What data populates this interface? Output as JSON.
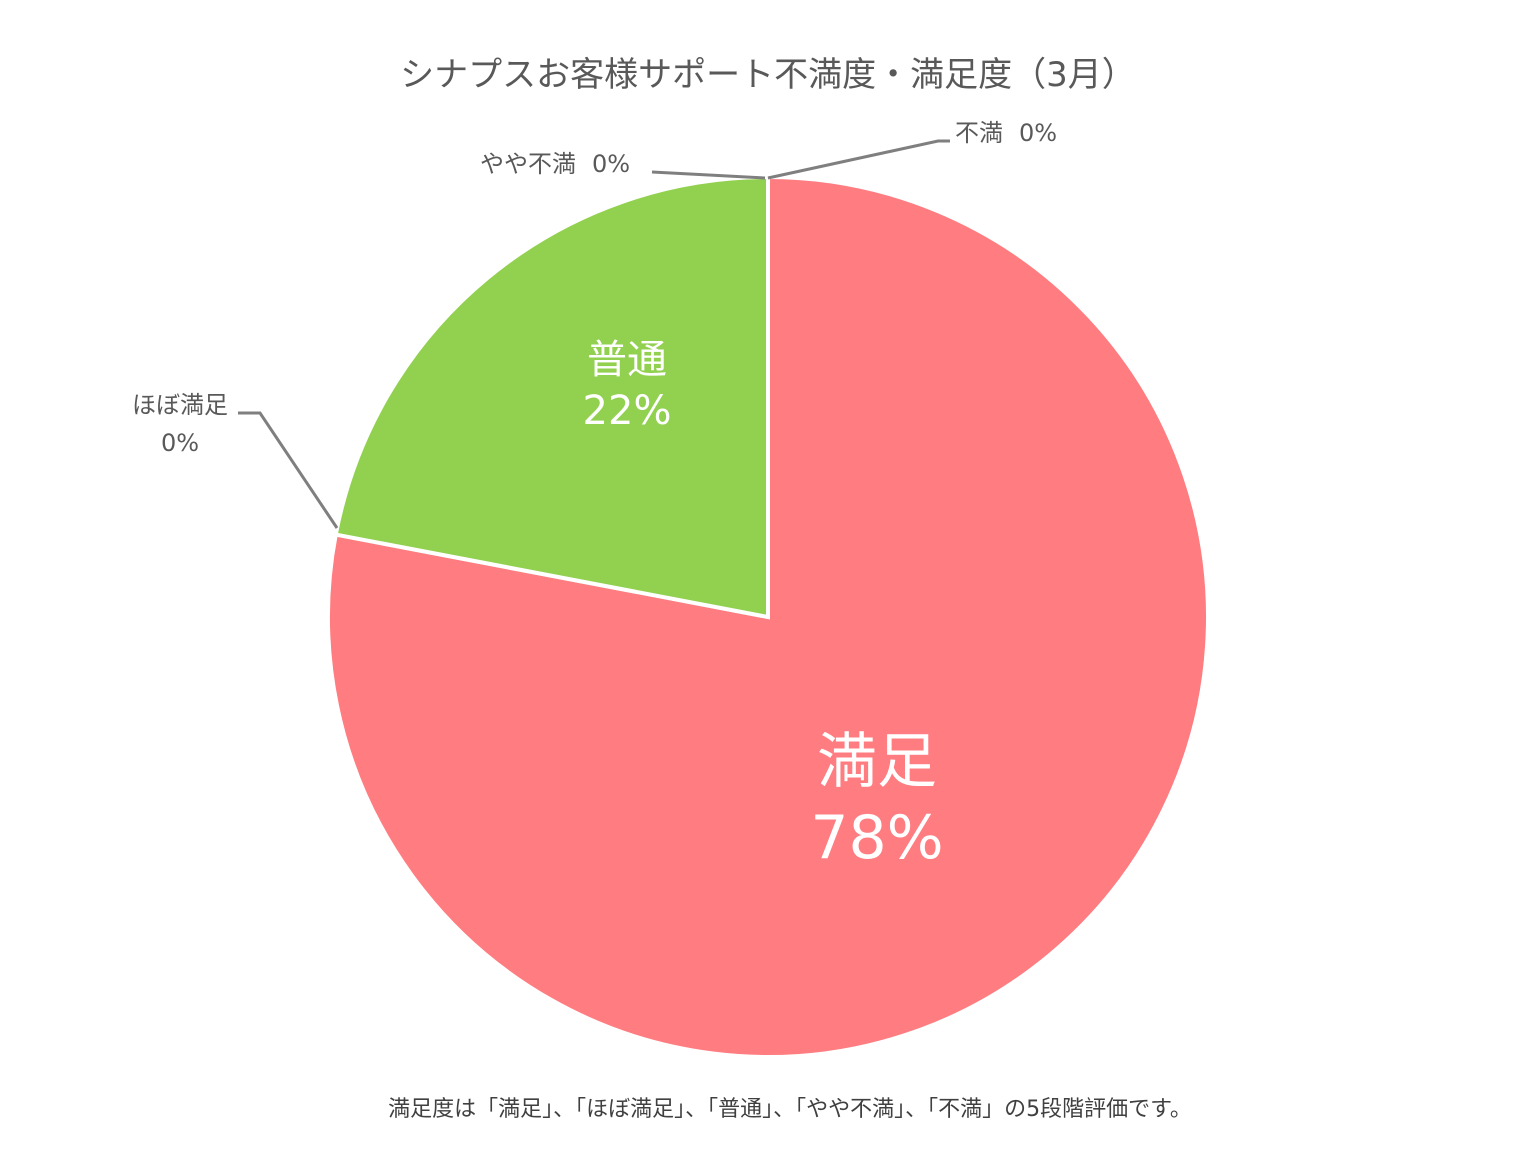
{
  "chart_data": {
    "type": "pie",
    "title": "シナプスお客様サポート不満度・満足度（3月）",
    "note": "満足度は「満足」、「ほぼ満足」、「普通」、「やや不満」、「不満」の5段階評価です。",
    "start_angle_deg": 0,
    "direction": "clockwise",
    "slices": [
      {
        "name": "満足",
        "value": 78,
        "label": "78%",
        "color": "#FF7C80",
        "label_position": "inside"
      },
      {
        "name": "ほぼ満足",
        "value": 0,
        "label": "0%",
        "color": "#F4B183",
        "label_position": "outside-left"
      },
      {
        "name": "普通",
        "value": 22,
        "label": "22%",
        "color": "#92D050",
        "label_position": "inside"
      },
      {
        "name": "やや不満",
        "value": 0,
        "label": "0%",
        "color": "#5B9BD5",
        "label_position": "outside-top-left"
      },
      {
        "name": "不満",
        "value": 0,
        "label": "0%",
        "color": "#7030A0",
        "label_position": "outside-top-right"
      }
    ]
  }
}
